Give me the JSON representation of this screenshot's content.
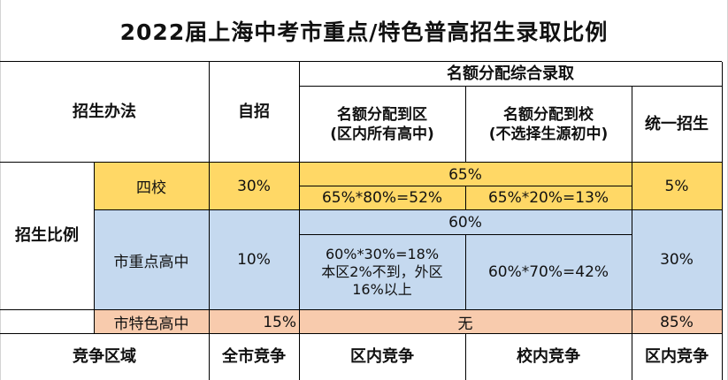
{
  "title": "2022届上海中考市重点/特色普高招生录取比例",
  "header": {
    "method_label": "招生办法",
    "self_recruit": "自招",
    "quota_group": "名额分配综合录取",
    "quota_district": "名额分配到区\n(区内所有高中)",
    "quota_school": "名额分配到校\n(不选择生源初中)",
    "unified": "统一招生"
  },
  "ratio_label": "招生比例",
  "rows": {
    "four_schools": {
      "label": "四校",
      "self": "30%",
      "quota_total": "65%",
      "quota_district": "65%*80%=52%",
      "quota_school": "65%*20%=13%",
      "unified": "5%"
    },
    "city_key": {
      "label": "市重点高中",
      "self": "10%",
      "quota_total": "60%",
      "quota_district": "60%*30%=18%\n本区2%不到，外区\n16%以上",
      "quota_school": "60%*70%=42%",
      "unified": "30%"
    },
    "city_special": {
      "label": "市特色高中",
      "self": "15%",
      "quota": "无",
      "unified": "85%"
    }
  },
  "footer": {
    "area_label": "竞争区域",
    "self": "全市竞争",
    "district": "区内竞争",
    "school": "校内竞争",
    "unified": "区内竞争"
  }
}
